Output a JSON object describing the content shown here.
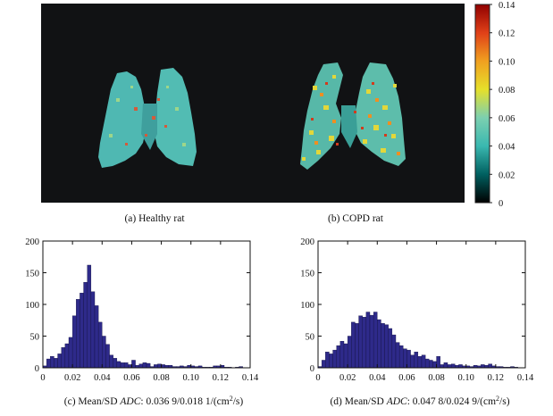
{
  "captions": {
    "a": "(a) Healthy rat",
    "b": "(b) COPD rat",
    "c_prefix": "(c) Mean/SD ",
    "c_italic": "ADC",
    "c_suffix": ": 0.036 9/0.018 1/(cm",
    "c_sup": "2",
    "c_end": "/s)",
    "d_prefix": "(d) Mean/SD ",
    "d_italic": "ADC",
    "d_suffix": ": 0.047 8/0.024 9/(cm",
    "d_sup": "2",
    "d_end": "/s)"
  },
  "colorbar": {
    "ticks": [
      "0.14",
      "0.12",
      "0.10",
      "0.08",
      "0.06",
      "0.04",
      "0.02",
      "0"
    ],
    "values": [
      0.14,
      0.12,
      0.1,
      0.08,
      0.06,
      0.04,
      0.02,
      0
    ],
    "range": [
      0,
      0.14
    ],
    "colors": [
      "#000000",
      "#006060",
      "#3ab8b0",
      "#7cd0b0",
      "#e6e02a",
      "#f0a020",
      "#e04018",
      "#900000"
    ]
  },
  "chart_data": [
    {
      "type": "bar",
      "title": "(c) Mean/SD ADC: 0.036 9/0.018 1/(cm2/s)",
      "subject": "Healthy rat",
      "xlabel": "",
      "ylabel": "",
      "xlim": [
        0,
        0.14
      ],
      "ylim": [
        0,
        200
      ],
      "xticks": [
        "0",
        "0.02",
        "0.04",
        "0.06",
        "0.08",
        "0.10",
        "0.12",
        "0.14"
      ],
      "yticks": [
        "0",
        "50",
        "100",
        "150",
        "200"
      ],
      "bin_width": 0.0025,
      "values": [
        3,
        14,
        18,
        15,
        22,
        32,
        38,
        48,
        82,
        108,
        118,
        135,
        162,
        120,
        98,
        72,
        50,
        37,
        20,
        15,
        10,
        8,
        8,
        5,
        12,
        4,
        6,
        8,
        7,
        2,
        5,
        6,
        5,
        4,
        4,
        2,
        2,
        3,
        2,
        4,
        3,
        2,
        3,
        1,
        1,
        1,
        3,
        3,
        4,
        1,
        1,
        0,
        1,
        2,
        0,
        0
      ]
    },
    {
      "type": "bar",
      "title": "(d) Mean/SD ADC: 0.047 8/0.024 9/(cm2/s)",
      "subject": "COPD rat",
      "xlabel": "",
      "ylabel": "",
      "xlim": [
        0,
        0.14
      ],
      "ylim": [
        0,
        200
      ],
      "xticks": [
        "0",
        "0.02",
        "0.04",
        "0.06",
        "0.08",
        "0.10",
        "0.12",
        "0.14"
      ],
      "yticks": [
        "0",
        "50",
        "100",
        "150",
        "200"
      ],
      "bin_width": 0.0025,
      "values": [
        2,
        12,
        25,
        22,
        28,
        35,
        42,
        38,
        50,
        72,
        70,
        82,
        80,
        88,
        83,
        88,
        76,
        70,
        68,
        62,
        52,
        40,
        35,
        30,
        28,
        20,
        25,
        18,
        20,
        14,
        12,
        10,
        18,
        5,
        8,
        5,
        6,
        4,
        5,
        3,
        3,
        2,
        4,
        3,
        5,
        4,
        6,
        3,
        2,
        2,
        1,
        1,
        2,
        1,
        0,
        0
      ]
    }
  ]
}
